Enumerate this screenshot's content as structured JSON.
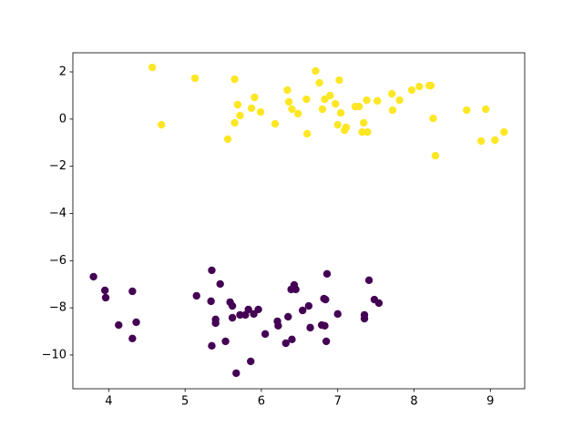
{
  "chart_data": {
    "type": "scatter",
    "xlim": [
      3.53,
      9.45
    ],
    "ylim": [
      -11.43,
      2.81
    ],
    "xticks": [
      4,
      5,
      6,
      7,
      8,
      9
    ],
    "yticks": [
      {
        "value": -10,
        "label": "−10"
      },
      {
        "value": -8,
        "label": "−8"
      },
      {
        "value": -6,
        "label": "−6"
      },
      {
        "value": -4,
        "label": "−4"
      },
      {
        "value": -2,
        "label": "−2"
      },
      0,
      2
    ],
    "grid": false,
    "series": [
      {
        "color": "#fde725",
        "x": [
          4.57,
          4.69,
          5.13,
          5.56,
          5.65,
          5.65,
          5.69,
          5.72,
          5.87,
          5.91,
          5.99,
          6.18,
          6.34,
          6.36,
          6.4,
          6.48,
          6.59,
          6.6,
          6.71,
          6.76,
          6.8,
          6.83,
          6.9,
          6.97,
          7.02,
          7.0,
          7.04,
          7.09,
          7.11,
          7.23,
          7.28,
          7.34,
          7.32,
          7.38,
          7.39,
          7.52,
          7.71,
          7.72,
          7.81,
          7.97,
          8.07,
          8.2,
          8.22,
          8.25,
          8.28,
          8.69,
          8.88,
          8.94,
          9.06,
          9.18
        ],
        "values": [
          2.19,
          -0.24,
          1.73,
          -0.85,
          1.69,
          -0.16,
          0.61,
          0.15,
          0.46,
          0.92,
          0.3,
          -0.2,
          1.23,
          0.73,
          0.42,
          0.23,
          0.84,
          -0.62,
          2.04,
          1.54,
          0.42,
          0.84,
          1.0,
          0.65,
          1.65,
          -0.24,
          0.26,
          -0.47,
          -0.35,
          0.53,
          0.53,
          -0.16,
          -0.55,
          0.8,
          -0.55,
          0.77,
          1.07,
          0.38,
          0.8,
          1.23,
          1.38,
          1.42,
          1.42,
          0.03,
          -1.55,
          0.38,
          -0.93,
          0.42,
          -0.89,
          -0.55
        ]
      },
      {
        "color": "#440154",
        "x": [
          3.8,
          3.95,
          3.96,
          4.13,
          4.31,
          4.31,
          4.36,
          5.15,
          5.35,
          5.34,
          5.4,
          5.4,
          5.46,
          5.35,
          5.53,
          5.59,
          5.62,
          5.62,
          5.67,
          5.72,
          5.79,
          5.83,
          5.86,
          5.9,
          5.96,
          6.05,
          6.21,
          6.22,
          6.32,
          6.35,
          6.39,
          6.4,
          6.43,
          6.45,
          6.54,
          6.62,
          6.64,
          6.79,
          6.82,
          6.84,
          6.83,
          6.85,
          6.86,
          7.0,
          7.35,
          7.35,
          7.41,
          7.48,
          7.54
        ],
        "values": [
          -6.68,
          -7.26,
          -7.57,
          -8.73,
          -7.3,
          -9.3,
          -8.61,
          -7.49,
          -6.41,
          -7.72,
          -8.49,
          -8.65,
          -6.99,
          -9.61,
          -9.42,
          -7.76,
          -7.92,
          -8.42,
          -10.77,
          -8.3,
          -8.3,
          -8.07,
          -10.27,
          -8.26,
          -8.07,
          -9.11,
          -8.57,
          -8.76,
          -9.5,
          -8.38,
          -7.22,
          -9.34,
          -7.03,
          -7.22,
          -8.11,
          -7.92,
          -8.84,
          -8.73,
          -7.61,
          -7.65,
          -8.76,
          -9.42,
          -6.56,
          -8.26,
          -8.3,
          -8.46,
          -6.83,
          -7.65,
          -7.8
        ]
      }
    ]
  }
}
